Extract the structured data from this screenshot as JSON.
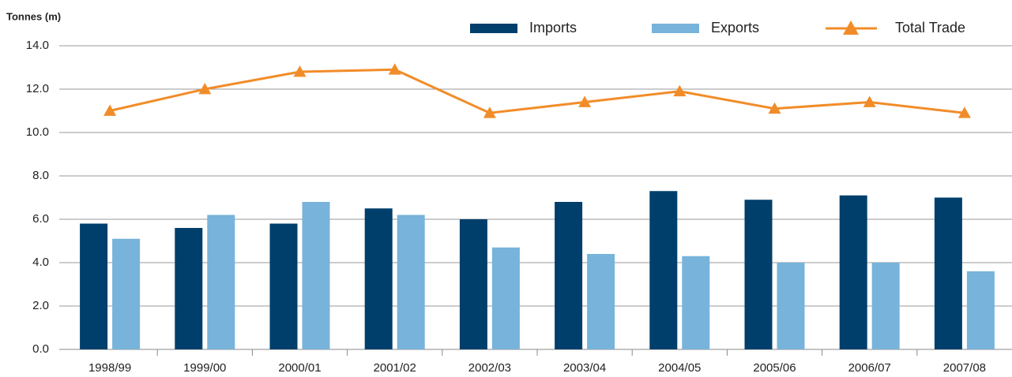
{
  "chart_data": {
    "type": "bar_line",
    "y_axis_label": "Tonnes (m)",
    "categories": [
      "1998/99",
      "1999/00",
      "2000/01",
      "2001/02",
      "2002/03",
      "2003/04",
      "2004/05",
      "2005/06",
      "2006/07",
      "2007/08"
    ],
    "series": [
      {
        "name": "Imports",
        "type": "bar",
        "color": "#003f6b",
        "values": [
          5.8,
          5.6,
          5.8,
          6.5,
          6.0,
          6.8,
          7.3,
          6.9,
          7.1,
          7.0
        ]
      },
      {
        "name": "Exports",
        "type": "bar",
        "color": "#77b3da",
        "values": [
          5.1,
          6.2,
          6.8,
          6.2,
          4.7,
          4.4,
          4.3,
          4.0,
          4.0,
          3.6
        ]
      },
      {
        "name": "Total Trade",
        "type": "line",
        "color": "#f28c28",
        "values": [
          11.0,
          12.0,
          12.8,
          12.9,
          10.9,
          11.4,
          11.9,
          11.1,
          11.4,
          10.9
        ]
      }
    ],
    "ylim": [
      0,
      14
    ],
    "yticks": [
      {
        "value": 0,
        "label": "0.0"
      },
      {
        "value": 2,
        "label": "2.0"
      },
      {
        "value": 4,
        "label": "4.0"
      },
      {
        "value": 6,
        "label": "6.0"
      },
      {
        "value": 8,
        "label": "8.0"
      },
      {
        "value": 10,
        "label": "10.0"
      },
      {
        "value": 12,
        "label": "12.0"
      },
      {
        "value": 14,
        "label": "14.0"
      }
    ],
    "grid": true
  }
}
